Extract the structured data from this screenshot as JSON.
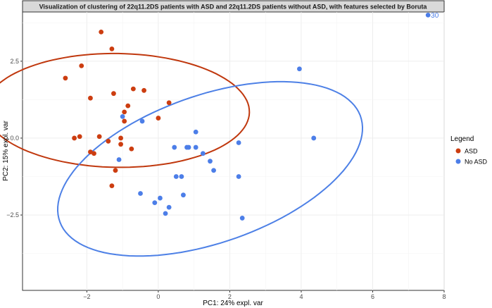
{
  "chart_data": {
    "type": "scatter",
    "title": "Visualization of clustering of 22q11.2DS patients with ASD and 22q11.2DS patients without ASD, with features selected by Boruta",
    "xlabel": "PC1: 24% expl. var",
    "ylabel": "PC2: 15% expl. var",
    "xlim": [
      -3.8,
      8.0
    ],
    "ylim": [
      -4.95,
      4.1
    ],
    "x_ticks": [
      -2,
      0,
      2,
      4,
      6,
      8
    ],
    "x_tick_labels": [
      "−2",
      "0",
      "2",
      "4",
      "6",
      "8"
    ],
    "y_ticks": [
      -2.5,
      0.0,
      2.5
    ],
    "y_tick_labels": [
      "−2.5",
      "0.0",
      "2.5"
    ],
    "grid": true,
    "legend": {
      "title": "Legend",
      "position": "right",
      "entries": [
        "ASD",
        "No ASD"
      ]
    },
    "colors": {
      "ASD": "#cc3d10",
      "No ASD": "#4c7ee8"
    },
    "series": [
      {
        "name": "ASD",
        "color": "#cc3d10",
        "points": [
          [
            -1.6,
            3.45
          ],
          [
            -1.3,
            2.9
          ],
          [
            -2.15,
            2.35
          ],
          [
            -2.6,
            1.95
          ],
          [
            -1.9,
            1.3
          ],
          [
            -0.7,
            1.6
          ],
          [
            -0.4,
            1.55
          ],
          [
            -1.25,
            1.45
          ],
          [
            -0.85,
            1.05
          ],
          [
            -0.95,
            0.85
          ],
          [
            0.3,
            1.15
          ],
          [
            -0.95,
            0.55
          ],
          [
            0.0,
            0.65
          ],
          [
            -1.65,
            0.05
          ],
          [
            -2.2,
            0.05
          ],
          [
            -2.35,
            0.0
          ],
          [
            -1.4,
            -0.1
          ],
          [
            -1.05,
            0.0
          ],
          [
            -1.05,
            -0.2
          ],
          [
            -1.9,
            -0.45
          ],
          [
            -1.8,
            -0.5
          ],
          [
            -0.75,
            -0.35
          ],
          [
            -1.2,
            -1.05
          ],
          [
            -1.3,
            -1.55
          ]
        ]
      },
      {
        "name": "No ASD",
        "color": "#4c7ee8",
        "points": [
          [
            3.95,
            2.25
          ],
          [
            -0.45,
            0.55
          ],
          [
            1.05,
            0.2
          ],
          [
            -1.0,
            0.7
          ],
          [
            0.45,
            -0.3
          ],
          [
            0.8,
            -0.3
          ],
          [
            0.85,
            -0.3
          ],
          [
            1.05,
            -0.3
          ],
          [
            1.25,
            -0.5
          ],
          [
            1.45,
            -0.75
          ],
          [
            2.25,
            -0.15
          ],
          [
            4.35,
            0.0
          ],
          [
            -1.1,
            -0.7
          ],
          [
            0.5,
            -1.25
          ],
          [
            0.65,
            -1.25
          ],
          [
            1.55,
            -1.05
          ],
          [
            2.25,
            -1.25
          ],
          [
            -0.5,
            -1.8
          ],
          [
            0.7,
            -1.85
          ],
          [
            0.05,
            -1.95
          ],
          [
            -0.1,
            -2.1
          ],
          [
            0.3,
            -2.25
          ],
          [
            0.2,
            -2.45
          ],
          [
            2.35,
            -2.6
          ],
          [
            7.55,
            4.0
          ]
        ]
      }
    ],
    "ellipses": [
      {
        "group": "ASD",
        "cx": -1.15,
        "cy": 0.9,
        "rx": 1.85,
        "ry": 3.7,
        "angle": 89,
        "color": "#c0380e"
      },
      {
        "group": "No ASD",
        "cx": 1.45,
        "cy": -1.0,
        "rx": 4.55,
        "ry": 2.35,
        "angle": 24,
        "color": "#4d80e6"
      }
    ],
    "annotations": [
      {
        "text": "30",
        "x": 7.55,
        "y": 4.0,
        "color": "#4c7ee8"
      }
    ]
  }
}
